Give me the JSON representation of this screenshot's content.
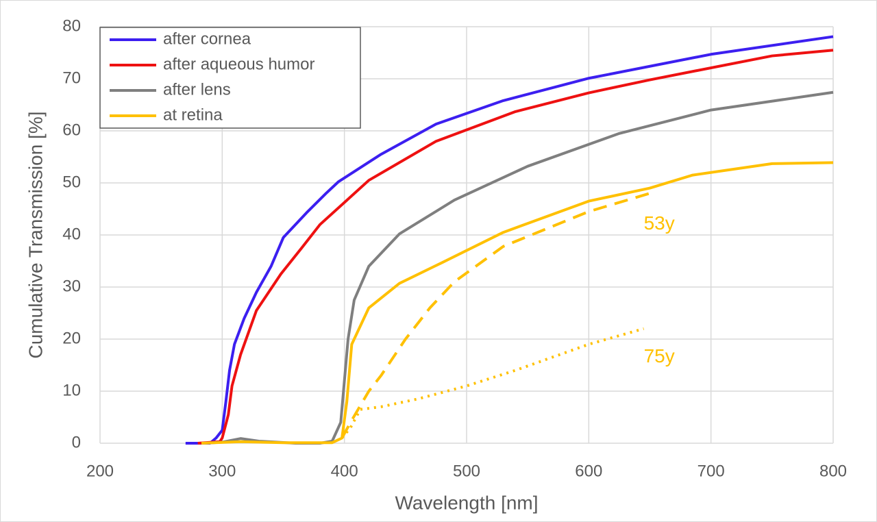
{
  "chart_data": {
    "type": "line",
    "x_label": "Wavelength [nm]",
    "y_label": "Cumulative Transmission [%]",
    "xlim": [
      200,
      800
    ],
    "xticks": [
      200,
      300,
      400,
      500,
      600,
      700,
      800
    ],
    "ylim": [
      0,
      80
    ],
    "yticks": [
      0,
      10,
      20,
      30,
      40,
      50,
      60,
      70,
      80
    ],
    "grid": true,
    "legend": "upper left",
    "series": [
      {
        "name": "after cornea",
        "color": "#3c1ff0",
        "x": [
          270,
          290,
          295,
          300,
          303,
          306,
          310,
          318,
          328,
          340,
          350,
          370,
          385,
          395,
          430,
          475,
          530,
          600,
          700,
          800
        ],
        "values": [
          0,
          0,
          1,
          2.5,
          8,
          14,
          19,
          24,
          29,
          34,
          39.5,
          44.5,
          48,
          50.2,
          55.5,
          61.3,
          65.8,
          70.1,
          74.7,
          78.1
        ]
      },
      {
        "name": "after aqueous humor",
        "color": "#ee1111",
        "x": [
          280,
          298,
          300,
          305,
          308,
          315,
          328,
          348,
          365,
          380,
          420,
          475,
          540,
          600,
          650,
          750,
          800
        ],
        "values": [
          0,
          0.3,
          1,
          5.5,
          11,
          17,
          25.5,
          32.5,
          37.5,
          42,
          50.5,
          58,
          63.7,
          67.3,
          69.8,
          74.4,
          75.5
        ]
      },
      {
        "name": "after lens",
        "color": "#7f7f7f",
        "x": [
          285,
          300,
          315,
          330,
          360,
          380,
          390,
          397,
          400,
          403,
          408,
          420,
          445,
          490,
          550,
          625,
          700,
          800
        ],
        "values": [
          0,
          0.2,
          0.9,
          0.4,
          0,
          0,
          0.4,
          4,
          12,
          20,
          27.5,
          34,
          40.2,
          46.7,
          53.2,
          59.5,
          64,
          67.4
        ]
      },
      {
        "name": "at retina",
        "color": "#ffc000",
        "x": [
          283,
          315,
          350,
          390,
          398,
          402,
          406,
          420,
          445,
          480,
          530,
          600,
          650,
          685,
          750,
          800
        ],
        "values": [
          0,
          0.3,
          0.1,
          0.1,
          1,
          8,
          19,
          26,
          30.7,
          34.7,
          40.5,
          46.5,
          49,
          51.5,
          53.7,
          53.9
        ]
      }
    ],
    "age_curves": [
      {
        "label": "53y",
        "color": "#ffc000",
        "style": "dashed",
        "label_at": [
          645,
          42
        ],
        "x": [
          398,
          405,
          420,
          430,
          450,
          470,
          490,
          530,
          600,
          650
        ],
        "values": [
          1,
          4,
          10,
          13,
          20,
          26,
          31,
          37.8,
          44.5,
          48
        ]
      },
      {
        "label": "75y",
        "color": "#ffc000",
        "style": "dotted",
        "label_at": [
          645,
          16.5
        ],
        "x": [
          398,
          405,
          413,
          430,
          460,
          500,
          540,
          600,
          645
        ],
        "values": [
          1,
          3,
          6.5,
          7,
          8.5,
          11,
          14,
          19,
          22
        ]
      }
    ]
  }
}
